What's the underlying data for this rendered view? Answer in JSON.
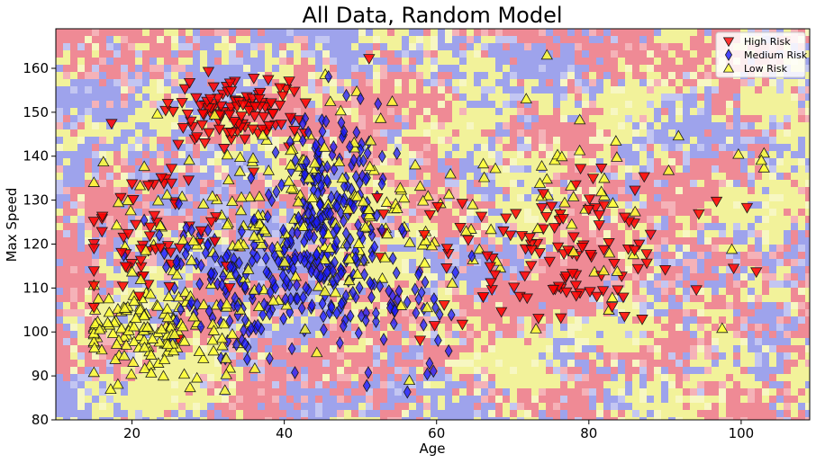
{
  "chart_data": {
    "type": "scatter",
    "title": "All Data, Random Model",
    "xlabel": "Age",
    "ylabel": "Max Speed",
    "xlim": [
      10,
      109
    ],
    "ylim": [
      80,
      169
    ],
    "xticks": [
      20,
      40,
      60,
      80,
      100
    ],
    "yticks": [
      80,
      90,
      100,
      110,
      120,
      130,
      140,
      150,
      160
    ],
    "grid": false,
    "legend_position": "top-right",
    "background": "random decision regions (contour) in red, blue and yellow",
    "series": [
      {
        "name": "High Risk",
        "marker": "triangle-down",
        "color": "#ff0000",
        "clusters": [
          {
            "x_center": 34,
            "y_center": 150,
            "x_spread": 5,
            "y_spread": 4,
            "count": 110
          },
          {
            "x_center": 22,
            "y_center": 122,
            "x_spread": 5,
            "y_spread": 10,
            "count": 60
          },
          {
            "x_center": 75,
            "y_center": 118,
            "x_spread": 10,
            "y_spread": 9,
            "count": 120
          }
        ]
      },
      {
        "name": "Medium Risk",
        "marker": "diamond",
        "color": "#1a1aff",
        "clusters": [
          {
            "x_center": 46,
            "y_center": 128,
            "x_spread": 4,
            "y_spread": 12,
            "count": 200
          },
          {
            "x_center": 35,
            "y_center": 112,
            "x_spread": 6,
            "y_spread": 9,
            "count": 150
          },
          {
            "x_center": 52,
            "y_center": 108,
            "x_spread": 6,
            "y_spread": 9,
            "count": 80
          }
        ]
      },
      {
        "name": "Low Risk",
        "marker": "triangle-up",
        "color": "#ffff33",
        "clusters": [
          {
            "x_center": 23,
            "y_center": 100,
            "x_spread": 5,
            "y_spread": 5,
            "count": 140
          },
          {
            "x_center": 40,
            "y_center": 125,
            "x_spread": 12,
            "y_spread": 14,
            "count": 180
          },
          {
            "x_center": 70,
            "y_center": 128,
            "x_spread": 16,
            "y_spread": 14,
            "count": 70
          }
        ]
      }
    ]
  },
  "colors": {
    "region_red": "#ef8a95",
    "region_red_light": "#f5b2b8",
    "region_blue": "#9ea3ec",
    "region_blue_light": "#c3c6f2",
    "region_yellow": "#f2f29a",
    "region_yellow_light": "#f7f7c2",
    "marker_edge": "#1a1a1a"
  }
}
